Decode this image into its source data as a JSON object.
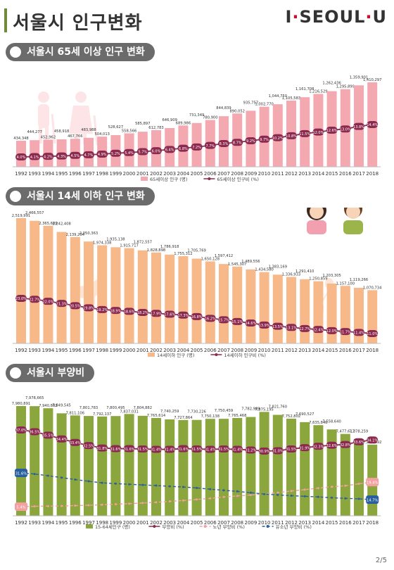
{
  "header": {
    "title": "서울시 인구변화",
    "logo_text": "I·SEOUL·U"
  },
  "footer": {
    "page": "2/5"
  },
  "colors": {
    "pink_bar": "#f4a9b0",
    "orange_bar": "#f7b98a",
    "green_bar": "#8ba63c",
    "line_dark": "#8b2a4e",
    "line_pink_dashed": "#f2a0a0",
    "line_blue_dashed": "#2a5f9e"
  },
  "chart_data": [
    {
      "type": "bar",
      "title": "서울시 65세 이상 인구 변화",
      "categories": [
        "1992",
        "1993",
        "1994",
        "1995",
        "1996",
        "1997",
        "1998",
        "1999",
        "2000",
        "2001",
        "2002",
        "2003",
        "2004",
        "2005",
        "2006",
        "2007",
        "2008",
        "2009",
        "2010",
        "2011",
        "2012",
        "2013",
        "2014",
        "2015",
        "2016",
        "2017",
        "2018"
      ],
      "series": [
        {
          "name": "65세이상 인구 (명)",
          "kind": "bar",
          "values": [
            434348,
            444277,
            452962,
            458918,
            467766,
            483988,
            504013,
            528627,
            558566,
            585897,
            612783,
            646909,
            689986,
            731349,
            780900,
            844839,
            890052,
            935757,
            1002770,
            1044750,
            1105583,
            1161708,
            1216529,
            1262436,
            1295899,
            1359901,
            1410297
          ],
          "labels": [
            "434,348",
            "444,277",
            "452,962",
            "458,918",
            "467,766",
            "483,988",
            "504,013",
            "528,627",
            "558,566",
            "585,897",
            "612,783",
            "646,909",
            "689,986",
            "731,349",
            "780,900",
            "844,839",
            "890,052",
            "935,757",
            "1,002,770",
            "1,044,750",
            "1,105,583",
            "1,161,708",
            "1,216,529",
            "1,262,436",
            "1,295,899",
            "1,359,901",
            "1,410,297"
          ]
        },
        {
          "name": "65세이상 인구비 (%)",
          "kind": "line",
          "values": [
            4.0,
            4.1,
            4.2,
            4.3,
            4.5,
            4.7,
            4.9,
            5.2,
            5.4,
            5.7,
            6.0,
            6.4,
            6.8,
            7.2,
            7.7,
            8.3,
            8.7,
            9.2,
            9.7,
            10.2,
            10.8,
            11.5,
            12.0,
            12.6,
            13.0,
            13.8,
            14.4
          ],
          "labels": [
            "4.0%",
            "4.1%",
            "4.2%",
            "4.3%",
            "4.5%",
            "4.7%",
            "4.9%",
            "5.2%",
            "5.4%",
            "5.7%",
            "6.0%",
            "6.4%",
            "6.8%",
            "7.2%",
            "7.7%",
            "8.3%",
            "8.7%",
            "9.2%",
            "9.7%",
            "10.2%",
            "10.8%",
            "11.5%",
            "12.0%",
            "12.6%",
            "13.0%",
            "13.8%",
            "14.4%"
          ]
        }
      ]
    },
    {
      "type": "bar",
      "title": "서울시 14세 이하 인구 변화",
      "categories": [
        "1992",
        "1993",
        "1994",
        "1995",
        "1996",
        "1997",
        "1998",
        "1999",
        "2000",
        "2001",
        "2002",
        "2003",
        "2004",
        "2005",
        "2006",
        "2007",
        "2008",
        "2009",
        "2010",
        "2011",
        "2012",
        "2013",
        "2014",
        "2015",
        "2016",
        "2017",
        "2018"
      ],
      "series": [
        {
          "name": "14세이하 인구 (명)",
          "kind": "bar",
          "values": [
            2519991,
            2466557,
            2365609,
            2242408,
            2139204,
            2050363,
            1974338,
            1935138,
            1915717,
            1872557,
            1828898,
            1786918,
            1755312,
            1705769,
            1650128,
            1597412,
            1545307,
            1489556,
            1434580,
            1383169,
            1336933,
            1291410,
            1250859,
            1203305,
            1157100,
            1119266,
            1070734
          ],
          "labels": [
            "2,519,991",
            "2,466,557",
            "2,365,609",
            "2,242,408",
            "2,139,204",
            "2,050,363",
            "1,974,338",
            "1,935,138",
            "1,915,717",
            "1,872,557",
            "1,828,898",
            "1,786,918",
            "1,755,312",
            "1,705,769",
            "1,650,128",
            "1,597,412",
            "1,545,307",
            "1,489,556",
            "1,434,580",
            "1,383,169",
            "1,336,933",
            "1,291,410",
            "1,250,859",
            "1,203,305",
            "1,157,100",
            "1,119,266",
            "1,070,734"
          ]
        },
        {
          "name": "14세이하 인구비 (%)",
          "kind": "line",
          "values": [
            23.0,
            22.7,
            22.0,
            21.3,
            20.5,
            19.8,
            19.2,
            18.9,
            18.6,
            18.2,
            17.9,
            17.6,
            17.3,
            16.8,
            16.2,
            15.7,
            15.1,
            14.6,
            13.9,
            13.5,
            13.1,
            12.7,
            12.4,
            12.0,
            11.7,
            11.4,
            11.0
          ],
          "labels": [
            "23.0%",
            "22.7%",
            "22.0%",
            "21.3%",
            "20.5%",
            "19.8%",
            "19.2%",
            "18.9%",
            "18.6%",
            "18.2%",
            "17.9%",
            "17.6%",
            "17.3%",
            "16.8%",
            "16.2%",
            "15.7%",
            "15.1%",
            "14.6%",
            "13.9%",
            "13.5%",
            "13.1%",
            "12.7%",
            "12.4%",
            "12.0%",
            "11.7%",
            "11.4%",
            "11.0%"
          ]
        }
      ]
    },
    {
      "type": "bar",
      "title": "서울시 부양비",
      "categories": [
        "1992",
        "1993",
        "1994",
        "1995",
        "1996",
        "1997",
        "1998",
        "1999",
        "2000",
        "2001",
        "2002",
        "2003",
        "2004",
        "2005",
        "2006",
        "2007",
        "2008",
        "2009",
        "2010",
        "2011",
        "2012",
        "2013",
        "2014",
        "2015",
        "2016",
        "2017",
        "2018"
      ],
      "series": [
        {
          "name": "15-64세인구 (명)",
          "kind": "bar",
          "values": [
            7980891,
            7978665,
            7940883,
            7849545,
            7811106,
            7801783,
            7792137,
            7800495,
            7837031,
            7804882,
            7765614,
            7740259,
            7727864,
            7730226,
            7750138,
            7750459,
            7765468,
            7782989,
            7875195,
            7821760,
            7752802,
            7690527,
            7635845,
            7558640,
            7477617,
            7378259,
            7284592
          ],
          "labels": [
            "7,980,891",
            "7,978,665",
            "7,940,883",
            "7,849,545",
            "7,811,106",
            "7,801,783",
            "7,792,137",
            "7,800,495",
            "7,837,031",
            "7,804,882",
            "7,765,614",
            "7,740,259",
            "7,727,864",
            "7,730,226",
            "7,750,138",
            "7,750,459",
            "7,765,468",
            "7,782,989",
            "7,875,195",
            "7,821,760",
            "7,752,802",
            "7,690,527",
            "7,635,845",
            "7,558,640",
            "7,477,617",
            "7,378,259",
            "7,284,592"
          ]
        },
        {
          "name": "부양비 (%)",
          "kind": "line",
          "values": [
            37.0,
            36.5,
            35.5,
            34.4,
            33.4,
            32.5,
            31.8,
            31.6,
            31.6,
            31.5,
            31.4,
            31.4,
            31.6,
            31.5,
            31.4,
            31.5,
            31.4,
            31.2,
            30.9,
            31.0,
            31.5,
            31.9,
            32.3,
            32.6,
            32.8,
            33.6,
            34.1
          ],
          "labels": [
            "37.0%",
            "36.5%",
            "35.5%",
            "34.4%",
            "33.4%",
            "32.5%",
            "31.8%",
            "31.6%",
            "31.6%",
            "31.5%",
            "31.4%",
            "31.4%",
            "31.6%",
            "31.5%",
            "31.4%",
            "31.5%",
            "31.4%",
            "31.2%",
            "30.9%",
            "31.0%",
            "31.5%",
            "31.9%",
            "32.3%",
            "32.6%",
            "32.8%",
            "33.6%",
            "34.1%"
          ]
        },
        {
          "name": "노년 부양비 (%)",
          "kind": "dashed",
          "values": [
            5.4,
            5.6,
            5.7,
            5.8,
            6.0,
            6.2,
            6.5,
            6.8,
            7.1,
            7.5,
            7.9,
            8.4,
            8.9,
            9.5,
            10.1,
            10.9,
            11.5,
            12.0,
            12.7,
            13.4,
            14.3,
            15.1,
            15.9,
            16.7,
            17.3,
            18.4,
            19.4
          ],
          "labels_shown": {
            "0": "5.4%",
            "26": "19.4%"
          }
        },
        {
          "name": "유소년 부양비 (%)",
          "kind": "dashed",
          "values": [
            31.6,
            30.9,
            29.8,
            28.6,
            27.4,
            26.3,
            25.3,
            24.8,
            24.4,
            24.0,
            23.6,
            23.1,
            22.7,
            22.1,
            21.3,
            20.6,
            19.9,
            19.1,
            18.2,
            17.7,
            17.2,
            16.8,
            16.4,
            15.9,
            15.5,
            15.2,
            14.7
          ],
          "labels_shown": {
            "0": "31.6%",
            "26": "14.7%"
          }
        }
      ]
    }
  ]
}
